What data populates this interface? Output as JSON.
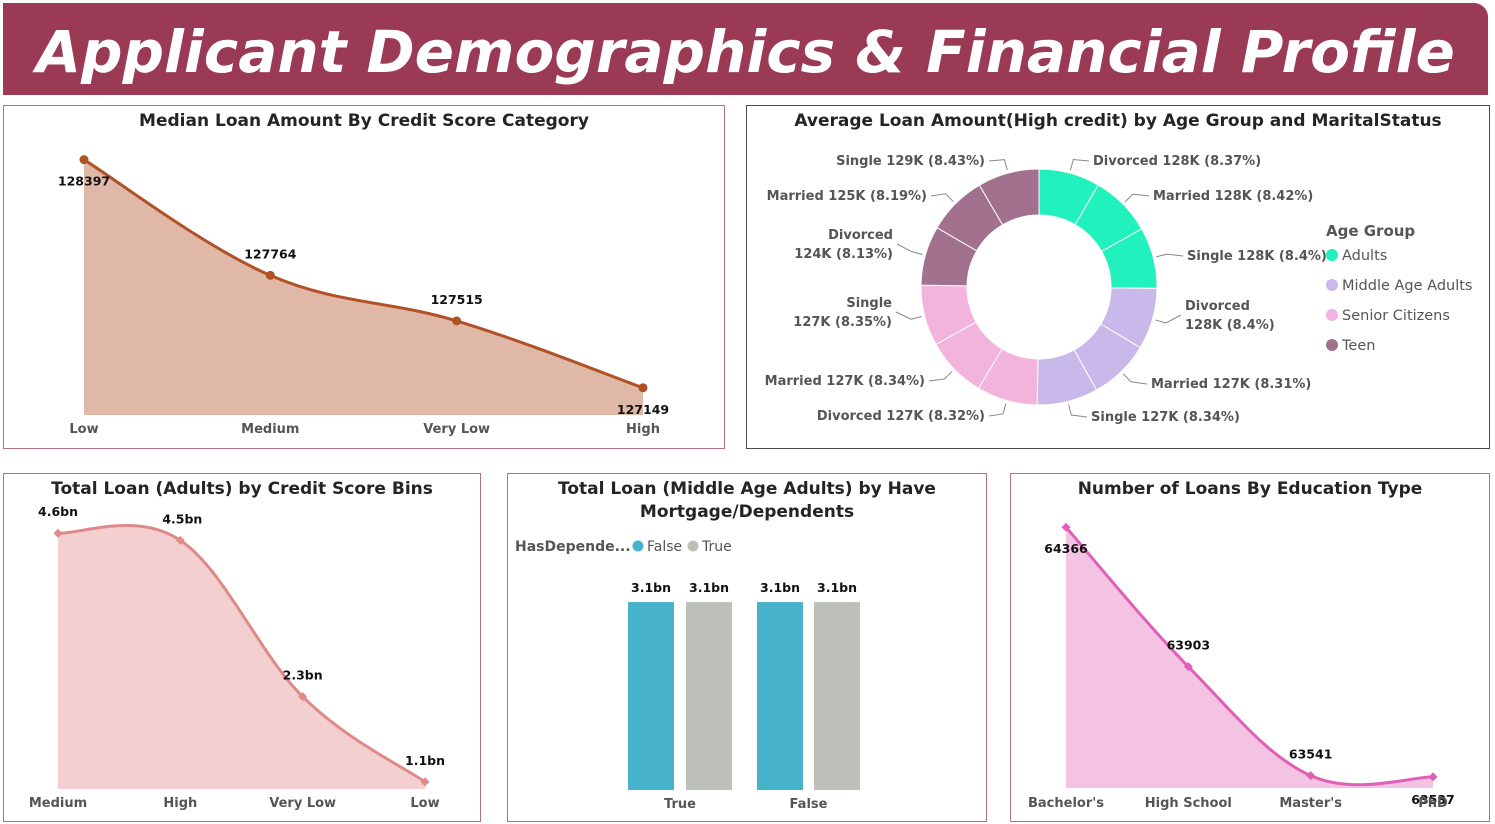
{
  "header": {
    "title": "Applicant Demographics & Financial Profile"
  },
  "panels": {
    "p1": {
      "title": "Median Loan Amount By Credit Score Category"
    },
    "p2": {
      "title": "Average Loan Amount(High credit) by Age Group and MaritalStatus"
    },
    "p3": {
      "title": "Total Loan (Adults) by Credit Score Bins"
    },
    "p4": {
      "title_line1": "Total Loan (Middle Age Adults) by Have",
      "title_line2": "Mortgage/Dependents"
    },
    "p5": {
      "title": "Number of Loans By Education Type"
    }
  },
  "colors": {
    "banner": "#9b3a55",
    "p1_line": "#b05126",
    "p1_fill": "#dfb8a7",
    "p3_line": "#de8a88",
    "p3_fill": "#f3d0cf",
    "p5_line": "#e060b8",
    "p5_fill": "#f4c3e3",
    "adults": "#21f2bd",
    "middle": "#c8b9ea",
    "senior": "#f2b3dc",
    "teen": "#a1718e",
    "false_bar": "#47b3cb",
    "true_bar": "#bdc0b8"
  },
  "chart_data": [
    {
      "type": "area",
      "title": "Median Loan Amount By Credit Score Category",
      "categories": [
        "Low",
        "Medium",
        "Very Low",
        "High"
      ],
      "values": [
        128397,
        127764,
        127515,
        127149
      ],
      "labels": [
        "128397",
        "127764",
        "127515",
        "127149"
      ],
      "ylim": [
        127000,
        128450
      ]
    },
    {
      "type": "pie",
      "title": "Average Loan Amount(High credit) by Age Group and MaritalStatus",
      "legend_title": "Age Group",
      "legend": [
        "Adults",
        "Middle Age Adults",
        "Senior Citizens",
        "Teen"
      ],
      "slices": [
        {
          "group": "Adults",
          "status": "Divorced",
          "value": 128,
          "pct": 8.37,
          "label": "Divorced 128K (8.37%)"
        },
        {
          "group": "Adults",
          "status": "Married",
          "value": 128,
          "pct": 8.42,
          "label": "Married 128K (8.42%)"
        },
        {
          "group": "Adults",
          "status": "Single",
          "value": 128,
          "pct": 8.4,
          "label": "Single 128K (8.4%)"
        },
        {
          "group": "Middle Age Adults",
          "status": "Divorced",
          "value": 128,
          "pct": 8.4,
          "label": "Divorced\n128K (8.4%)"
        },
        {
          "group": "Middle Age Adults",
          "status": "Married",
          "value": 127,
          "pct": 8.31,
          "label": "Married 127K (8.31%)"
        },
        {
          "group": "Middle Age Adults",
          "status": "Single",
          "value": 127,
          "pct": 8.34,
          "label": "Single 127K (8.34%)"
        },
        {
          "group": "Senior Citizens",
          "status": "Divorced",
          "value": 127,
          "pct": 8.32,
          "label": "Divorced 127K (8.32%)"
        },
        {
          "group": "Senior Citizens",
          "status": "Married",
          "value": 127,
          "pct": 8.34,
          "label": "Married 127K (8.34%)"
        },
        {
          "group": "Senior Citizens",
          "status": "Single",
          "value": 127,
          "pct": 8.35,
          "label": "Single\n127K (8.35%)"
        },
        {
          "group": "Teen",
          "status": "Divorced",
          "value": 124,
          "pct": 8.13,
          "label": "Divorced\n124K (8.13%)"
        },
        {
          "group": "Teen",
          "status": "Married",
          "value": 125,
          "pct": 8.19,
          "label": "Married 125K (8.19%)"
        },
        {
          "group": "Teen",
          "status": "Single",
          "value": 129,
          "pct": 8.43,
          "label": "Single 129K (8.43%)"
        }
      ]
    },
    {
      "type": "area",
      "title": "Total Loan (Adults) by Credit Score Bins",
      "categories": [
        "Medium",
        "High",
        "Very Low",
        "Low"
      ],
      "values": [
        4.6,
        4.5,
        2.3,
        1.1
      ],
      "labels": [
        "4.6bn",
        "4.5bn",
        "2.3bn",
        "1.1bn"
      ],
      "ylim": [
        1.0,
        4.8
      ]
    },
    {
      "type": "bar",
      "title": "Total Loan (Middle Age Adults) by Have Mortgage/Dependents",
      "legend_title": "HasDepende...",
      "legend": [
        "False",
        "True"
      ],
      "categories": [
        "True",
        "False"
      ],
      "series": [
        {
          "name": "False",
          "values": [
            3.1,
            3.1
          ],
          "labels": [
            "3.1bn",
            "3.1bn"
          ]
        },
        {
          "name": "True",
          "values": [
            3.1,
            3.1
          ],
          "labels": [
            "3.1bn",
            "3.1bn"
          ]
        }
      ],
      "ylim": [
        0,
        3.2
      ]
    },
    {
      "type": "area",
      "title": "Number of Loans By Education Type",
      "categories": [
        "Bachelor's",
        "High School",
        "Master's",
        "PhD"
      ],
      "values": [
        64366,
        63903,
        63541,
        63537
      ],
      "labels": [
        "64366",
        "63903",
        "63541",
        "63537"
      ],
      "ylim": [
        63500,
        64390
      ]
    }
  ]
}
